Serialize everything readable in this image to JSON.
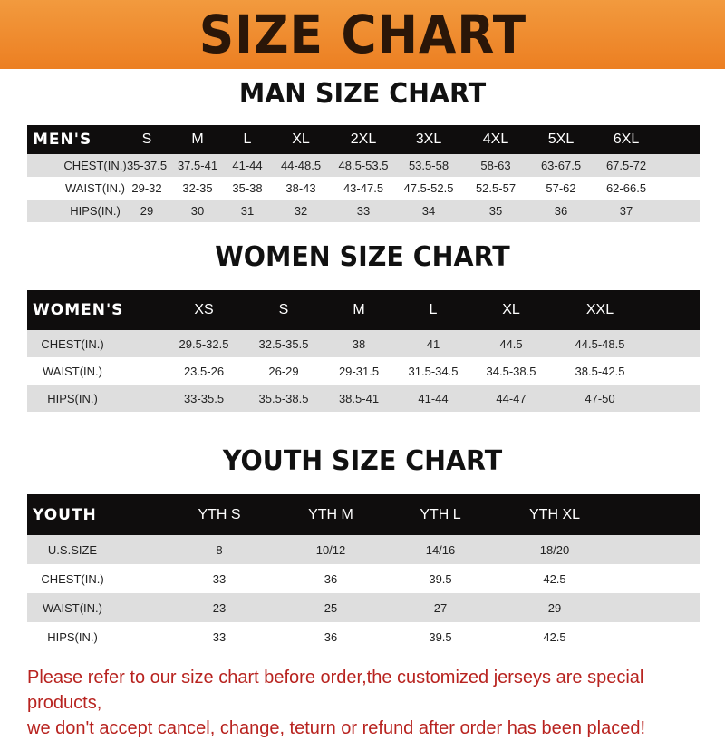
{
  "title": "SIZE CHART",
  "men": {
    "title": "MAN SIZE CHART",
    "header": [
      "MEN'S",
      "S",
      "M",
      "L",
      "XL",
      "2XL",
      "3XL",
      "4XL",
      "5XL",
      "6XL"
    ],
    "rows": [
      [
        "CHEST(IN.)",
        "35-37.5",
        "37.5-41",
        "41-44",
        "44-48.5",
        "48.5-53.5",
        "53.5-58",
        "58-63",
        "63-67.5",
        "67.5-72"
      ],
      [
        "WAIST(IN.)",
        "29-32",
        "32-35",
        "35-38",
        "38-43",
        "43-47.5",
        "47.5-52.5",
        "52.5-57",
        "57-62",
        "62-66.5"
      ],
      [
        "HIPS(IN.)",
        "29",
        "30",
        "31",
        "32",
        "33",
        "34",
        "35",
        "36",
        "37"
      ]
    ]
  },
  "women": {
    "title": "WOMEN SIZE CHART",
    "header": [
      "WOMEN'S",
      "XS",
      "S",
      "M",
      "L",
      "XL",
      "XXL"
    ],
    "rows": [
      [
        "CHEST(IN.)",
        "29.5-32.5",
        "32.5-35.5",
        "38",
        "41",
        "44.5",
        "44.5-48.5"
      ],
      [
        "WAIST(IN.)",
        "23.5-26",
        "26-29",
        "29-31.5",
        "31.5-34.5",
        "34.5-38.5",
        "38.5-42.5"
      ],
      [
        "HIPS(IN.)",
        "33-35.5",
        "35.5-38.5",
        "38.5-41",
        "41-44",
        "44-47",
        "47-50"
      ]
    ]
  },
  "youth": {
    "title": "YOUTH SIZE CHART",
    "header": [
      "YOUTH",
      "YTH S",
      "YTH M",
      "YTH L",
      "YTH XL"
    ],
    "rows": [
      [
        "U.S.SIZE",
        "8",
        "10/12",
        "14/16",
        "18/20"
      ],
      [
        "CHEST(IN.)",
        "33",
        "36",
        "39.5",
        "42.5"
      ],
      [
        "WAIST(IN.)",
        "23",
        "25",
        "27",
        "29"
      ],
      [
        "HIPS(IN.)",
        "33",
        "36",
        "39.5",
        "42.5"
      ]
    ]
  },
  "footer": {
    "line1": "Please refer to our size chart before order,the customized jerseys are special products,",
    "line2": "we don't accept cancel, change, teturn or refund after order has been placed!"
  },
  "colors": {
    "banner": "#ee8a2e",
    "header_row": "#0f0d0d",
    "stripe": "#dedede",
    "notice": "#b8231f"
  }
}
